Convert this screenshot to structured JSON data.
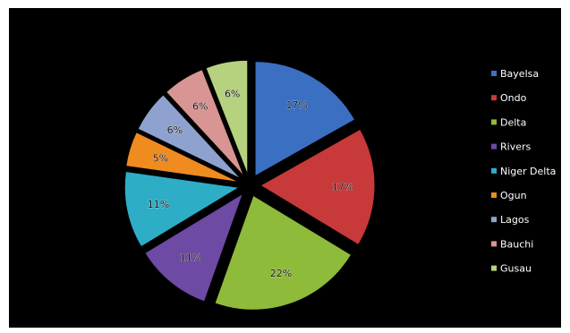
{
  "chart_data": {
    "type": "pie",
    "title": "",
    "categories": [
      "Bayelsa",
      "Ondo",
      "Delta",
      "Rivers",
      "Niger Delta",
      "Ogun",
      "Lagos",
      "Bauchi",
      "Gusau"
    ],
    "values": [
      17,
      17,
      22,
      11,
      11,
      5,
      6,
      6,
      6
    ],
    "labels": [
      "17%",
      "17%",
      "22%",
      "11%",
      "11%",
      "5%",
      "6%",
      "6%",
      "6%"
    ],
    "colors": [
      "#3b6fc2",
      "#c8393a",
      "#8fbb3a",
      "#6d4aa3",
      "#2eaec6",
      "#ef8b1f",
      "#8fa2cf",
      "#d99593",
      "#b6d27f"
    ],
    "exploded": true,
    "legend_position": "right",
    "background": "#000000"
  }
}
